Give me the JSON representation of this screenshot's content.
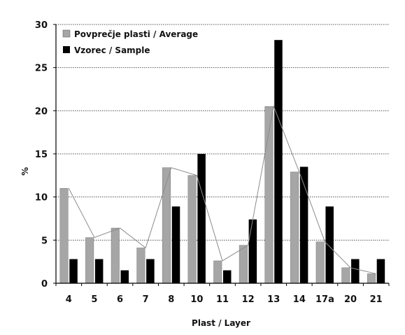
{
  "chart_data": {
    "type": "bar",
    "title": "",
    "xlabel": "Plast / Layer",
    "ylabel": "%",
    "ylim": [
      0,
      30
    ],
    "yticks": [
      0,
      5,
      10,
      15,
      20,
      25,
      30
    ],
    "grid": true,
    "legend_position": "top-left",
    "categories": [
      "4",
      "5",
      "6",
      "7",
      "8",
      "10",
      "11",
      "12",
      "13",
      "14",
      "17a",
      "20",
      "21"
    ],
    "series": [
      {
        "name": "Povprečje plasti / Average",
        "color": "#a6a6a6",
        "values": [
          11.0,
          5.3,
          6.4,
          4.1,
          13.4,
          12.5,
          2.6,
          4.4,
          20.5,
          12.9,
          4.8,
          1.8,
          1.1
        ],
        "overlay_line": true
      },
      {
        "name": "Vzorec / Sample",
        "color": "#000000",
        "values": [
          2.8,
          2.8,
          1.5,
          2.8,
          8.9,
          15.0,
          1.5,
          7.4,
          28.2,
          13.5,
          8.9,
          2.8,
          2.8
        ]
      }
    ]
  }
}
